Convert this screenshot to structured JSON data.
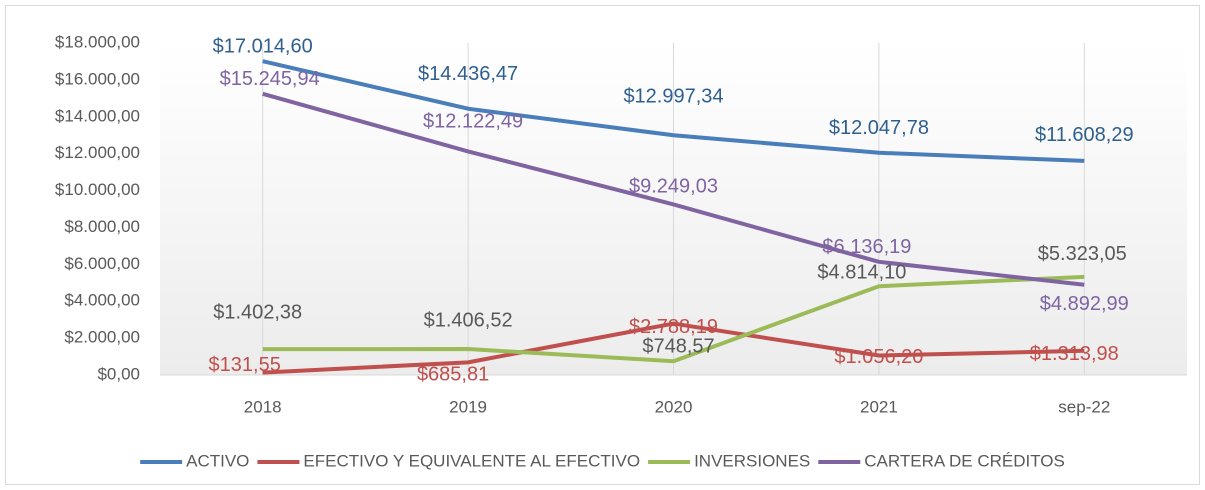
{
  "chart_data": {
    "type": "line",
    "categories": [
      "2018",
      "2019",
      "2020",
      "2021",
      "sep-22"
    ],
    "ylim": [
      0,
      18000
    ],
    "yticks": [
      {
        "value": 0,
        "label": "$0,00"
      },
      {
        "value": 2000,
        "label": "$2.000,00"
      },
      {
        "value": 4000,
        "label": "$4.000,00"
      },
      {
        "value": 6000,
        "label": "$6.000,00"
      },
      {
        "value": 8000,
        "label": "$8.000,00"
      },
      {
        "value": 10000,
        "label": "$10.000,00"
      },
      {
        "value": 12000,
        "label": "$12.000,00"
      },
      {
        "value": 14000,
        "label": "$14.000,00"
      },
      {
        "value": 16000,
        "label": "$16.000,00"
      },
      {
        "value": 18000,
        "label": "$18.000,00"
      }
    ],
    "grid": false,
    "legend": "bottom",
    "series": [
      {
        "name": "ACTIVO",
        "color": "#4a7ebb",
        "label_color": "#2f5f8f",
        "values": [
          17014.6,
          14436.47,
          12997.34,
          12047.78,
          11608.29
        ],
        "value_labels": [
          "$17.014,60",
          "$14.436,47",
          "$12.997,34",
          "$12.047,78",
          "$11.608,29"
        ]
      },
      {
        "name": "EFECTIVO Y EQUIVALENTE AL EFECTIVO",
        "color": "#c0504d",
        "label_color": "#c0504d",
        "values": [
          131.55,
          685.81,
          2788.19,
          1056.2,
          1313.98
        ],
        "value_labels": [
          "$131,55",
          "$685,81",
          "$2.788,19",
          "$1.056,20",
          "$1.313,98"
        ]
      },
      {
        "name": "INVERSIONES",
        "color": "#9bbb59",
        "label_color": "#595959",
        "values": [
          1402.38,
          1406.52,
          748.57,
          4814.1,
          5323.05
        ],
        "value_labels": [
          "$1.402,38",
          "$1.406,52",
          "$748,57",
          "$4.814,10",
          "$5.323,05"
        ]
      },
      {
        "name": "CARTERA DE CRÉDITOS",
        "color": "#8064a2",
        "label_color": "#8064a2",
        "values": [
          15245.94,
          12122.49,
          9249.03,
          6136.19,
          4892.99
        ],
        "value_labels": [
          "$15.245,94",
          "$12.122,49",
          "$9.249,03",
          "$6.136,19",
          "$4.892,99"
        ]
      }
    ]
  }
}
